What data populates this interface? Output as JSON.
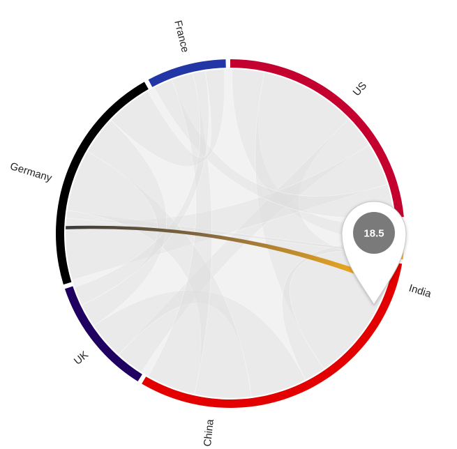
{
  "chart_data": {
    "type": "chord",
    "title": "",
    "nodes": [
      {
        "name": "US",
        "color": "#c4002f"
      },
      {
        "name": "India",
        "color": "#ffa400"
      },
      {
        "name": "China",
        "color": "#e30000"
      },
      {
        "name": "UK",
        "color": "#1f0060"
      },
      {
        "name": "Germany",
        "color": "#000000"
      },
      {
        "name": "France",
        "color": "#2236a6"
      }
    ],
    "links": [
      {
        "source": "US",
        "target": "India",
        "value": 6
      },
      {
        "source": "US",
        "target": "China",
        "value": 18
      },
      {
        "source": "US",
        "target": "UK",
        "value": 6
      },
      {
        "source": "US",
        "target": "Germany",
        "value": 8
      },
      {
        "source": "US",
        "target": "France",
        "value": 6
      },
      {
        "source": "India",
        "target": "China",
        "value": 3
      },
      {
        "source": "India",
        "target": "Germany",
        "value": 1
      },
      {
        "source": "China",
        "target": "UK",
        "value": 8
      },
      {
        "source": "China",
        "target": "Germany",
        "value": 8
      },
      {
        "source": "China",
        "target": "France",
        "value": 7
      },
      {
        "source": "UK",
        "target": "Germany",
        "value": 5
      },
      {
        "source": "UK",
        "target": "France",
        "value": 4
      },
      {
        "source": "Germany",
        "target": "France",
        "value": 6
      }
    ],
    "highlighted_link": {
      "source": "Germany",
      "target": "India"
    },
    "tooltip": {
      "value": "18.5",
      "color": "#7a7a7a"
    },
    "legend": "none",
    "grid": false
  }
}
